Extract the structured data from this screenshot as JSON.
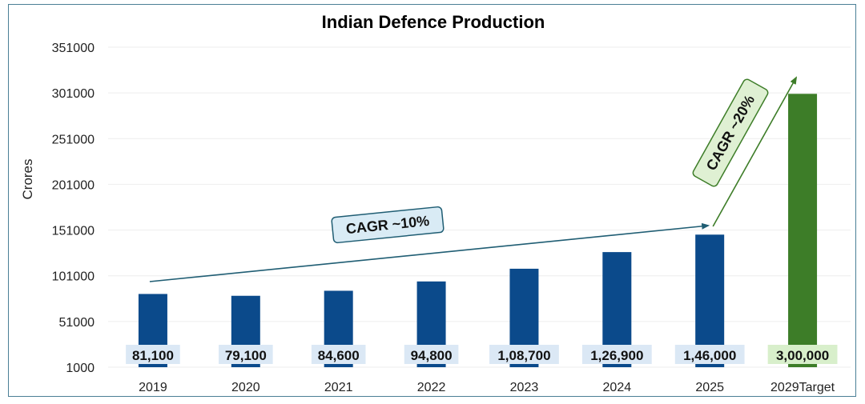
{
  "chart_data": {
    "type": "bar",
    "title": "Indian Defence Production",
    "ylabel": "Crores",
    "xlabel": "",
    "ylim": [
      1000,
      351000
    ],
    "yticks": [
      1000,
      51000,
      101000,
      151000,
      201000,
      251000,
      301000,
      351000
    ],
    "ytick_labels": [
      "1000",
      "51000",
      "101000",
      "151000",
      "201000",
      "251000",
      "301000",
      "351000"
    ],
    "categories": [
      "2019",
      "2020",
      "2021",
      "2022",
      "2023",
      "2024",
      "2025",
      "2029Target"
    ],
    "values": [
      81100,
      79100,
      84600,
      94800,
      108700,
      126900,
      146000,
      300000
    ],
    "data_labels": [
      "81,100",
      "79,100",
      "84,600",
      "94,800",
      "1,08,700",
      "1,26,900",
      "1,46,000",
      "3,00,000"
    ],
    "bar_colors": [
      "#0b4a8b",
      "#0b4a8b",
      "#0b4a8b",
      "#0b4a8b",
      "#0b4a8b",
      "#0b4a8b",
      "#0b4a8b",
      "#3d7d28"
    ],
    "label_backgrounds": [
      "#dbe8f5",
      "#dbe8f5",
      "#dbe8f5",
      "#dbe8f5",
      "#dbe8f5",
      "#dbe8f5",
      "#dbe8f5",
      "#d8efcb"
    ],
    "grid": true,
    "annotations": [
      {
        "text": "CAGR ~10%",
        "from": "2019",
        "to": "2025",
        "color": "#1f5d73",
        "fill": "#d9ebf5"
      },
      {
        "text": "CAGR ~20%",
        "from": "2025",
        "to": "2029Target",
        "color": "#3d7d28",
        "fill": "#dff0d3"
      }
    ]
  }
}
